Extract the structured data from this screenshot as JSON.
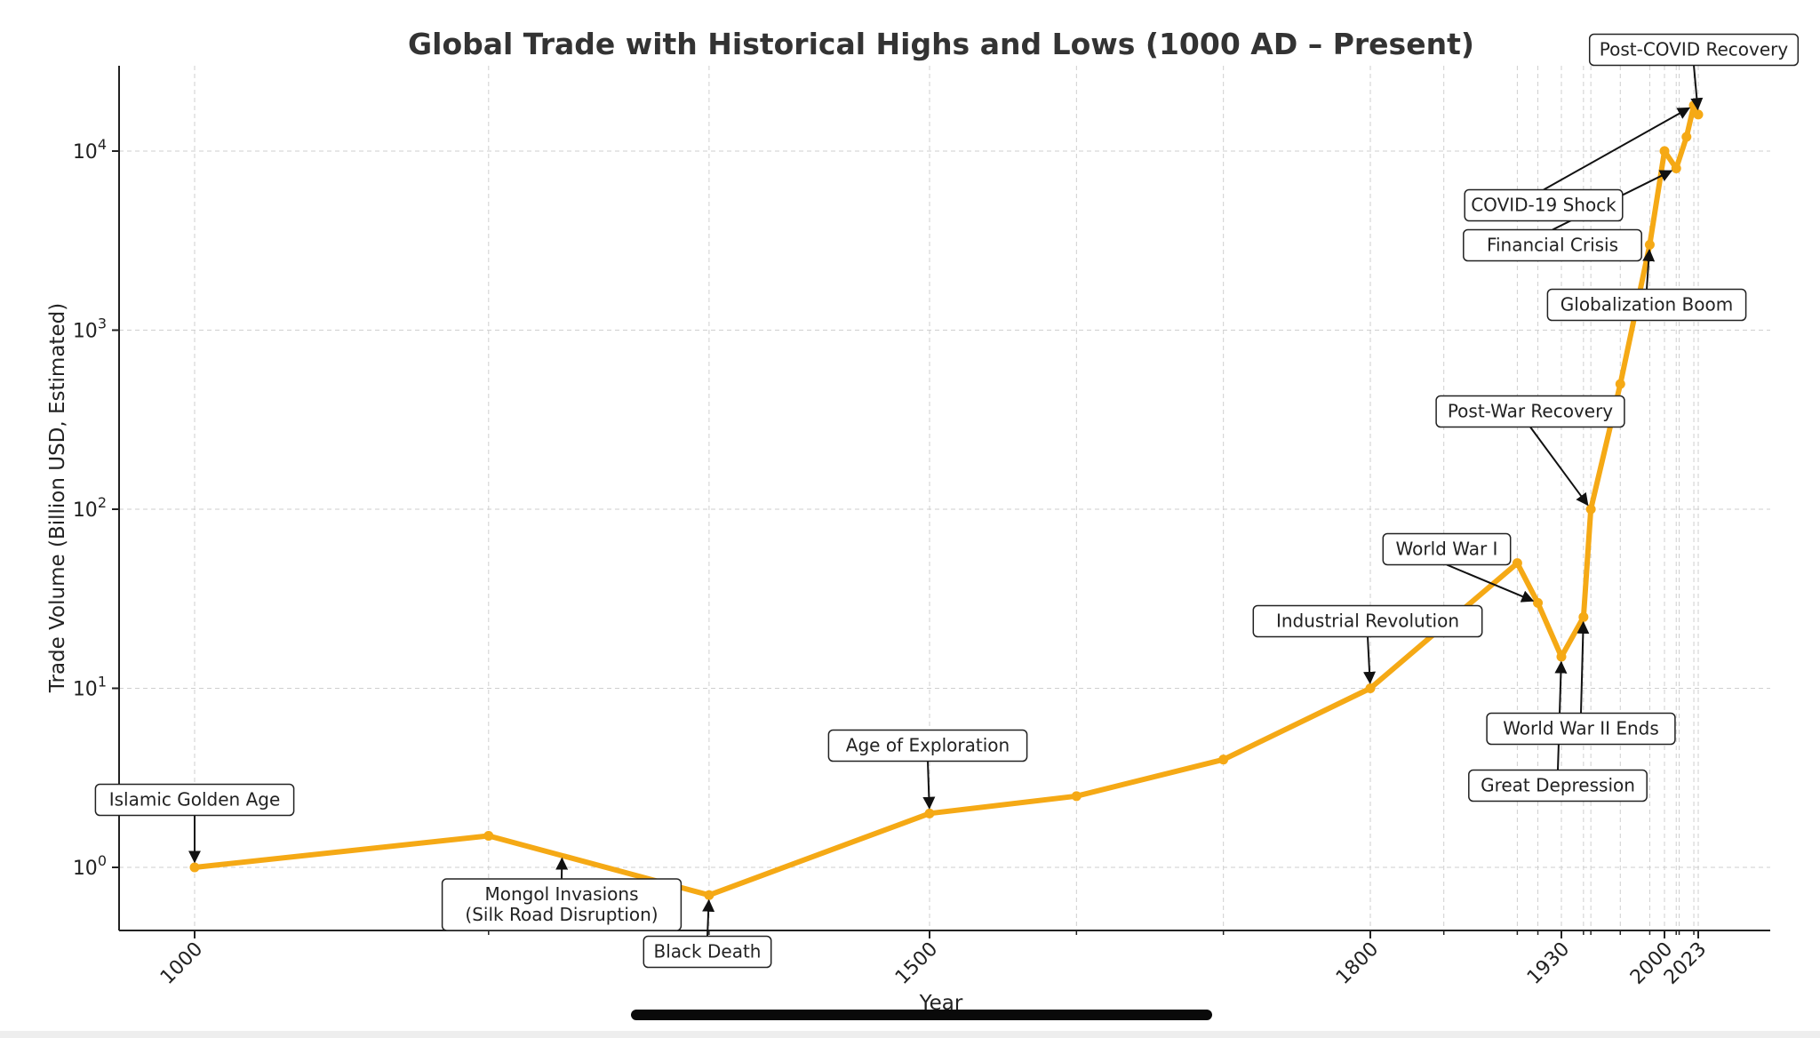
{
  "chart_data": {
    "type": "line",
    "title": "Global Trade with Historical Highs and Lows (1000 AD – Present)",
    "xlabel": "Year",
    "ylabel": "Trade Volume (Billion USD, Estimated)",
    "y_scale": "log",
    "xlim": [
      950,
      2050
    ],
    "ylim": [
      0.45,
      30000
    ],
    "grid": true,
    "line_color": "#f5a915",
    "x_ticks": [
      1000,
      1500,
      1800,
      1930,
      2000,
      2023
    ],
    "x_minor_grid": [
      1200,
      1350,
      1600,
      1700,
      1850,
      1900,
      1914,
      1945,
      1950,
      1970,
      1990,
      2008,
      2010,
      2020
    ],
    "y_ticks": [
      {
        "value": 1,
        "base": "10",
        "exp": "0"
      },
      {
        "value": 10,
        "base": "10",
        "exp": "1"
      },
      {
        "value": 100,
        "base": "10",
        "exp": "2"
      },
      {
        "value": 1000,
        "base": "10",
        "exp": "3"
      },
      {
        "value": 10000,
        "base": "10",
        "exp": "4"
      }
    ],
    "series": [
      {
        "x": [
          1000,
          1200,
          1350,
          1500,
          1600,
          1700,
          1800,
          1900,
          1914,
          1930,
          1945,
          1950,
          1970,
          1990,
          2000,
          2008,
          2015,
          2020,
          2023
        ],
        "y": [
          1,
          1.5,
          0.7,
          2,
          2.5,
          4,
          10,
          50,
          30,
          15,
          25,
          100,
          500,
          3000,
          10000,
          8000,
          12000,
          18000,
          16000
        ]
      }
    ],
    "annotations": [
      {
        "lines": [
          "Islamic Golden Age"
        ],
        "x": 1000,
        "y": 1
      },
      {
        "lines": [
          "Mongol Invasions",
          "(Silk Road Disruption)"
        ],
        "x": 1250,
        "y": 1.2
      },
      {
        "lines": [
          "Black Death"
        ],
        "x": 1350,
        "y": 0.7
      },
      {
        "lines": [
          "Age of Exploration"
        ],
        "x": 1500,
        "y": 2
      },
      {
        "lines": [
          "Industrial Revolution"
        ],
        "x": 1800,
        "y": 10
      },
      {
        "lines": [
          "World War I"
        ],
        "x": 1914,
        "y": 30
      },
      {
        "lines": [
          "Great Depression"
        ],
        "x": 1930,
        "y": 15
      },
      {
        "lines": [
          "World War II Ends"
        ],
        "x": 1945,
        "y": 25
      },
      {
        "lines": [
          "Post-War Recovery"
        ],
        "x": 1950,
        "y": 100
      },
      {
        "lines": [
          "Globalization Boom"
        ],
        "x": 1990,
        "y": 3000
      },
      {
        "lines": [
          "Financial Crisis"
        ],
        "x": 2008,
        "y": 8000
      },
      {
        "lines": [
          "COVID-19 Shock"
        ],
        "x": 2020,
        "y": 18000
      },
      {
        "lines": [
          "Post-COVID Recovery"
        ],
        "x": 2023,
        "y": 16000
      }
    ]
  }
}
